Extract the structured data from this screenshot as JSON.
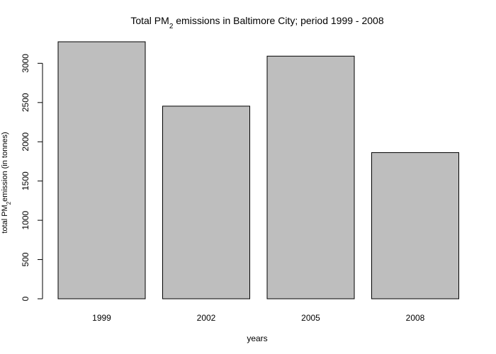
{
  "chart_data": {
    "type": "bar",
    "title": {
      "prefix": "Total PM",
      "subscript": "2",
      "suffix": " emissions in Baltimore City; period 1999 - 2008"
    },
    "xlabel": "years",
    "ylabel": {
      "prefix": "total PM",
      "subscript": "2",
      "suffix": "emission (in tonnes)"
    },
    "categories": [
      "1999",
      "2002",
      "2005",
      "2008"
    ],
    "values": [
      3274,
      2454,
      3091,
      1862
    ],
    "yticks": [
      0,
      500,
      1000,
      1500,
      2000,
      2500,
      3000
    ],
    "ylim": [
      0,
      3274
    ],
    "grid": false,
    "legend": "none",
    "bar_color": "#bebebe",
    "border_color": "#000000"
  }
}
